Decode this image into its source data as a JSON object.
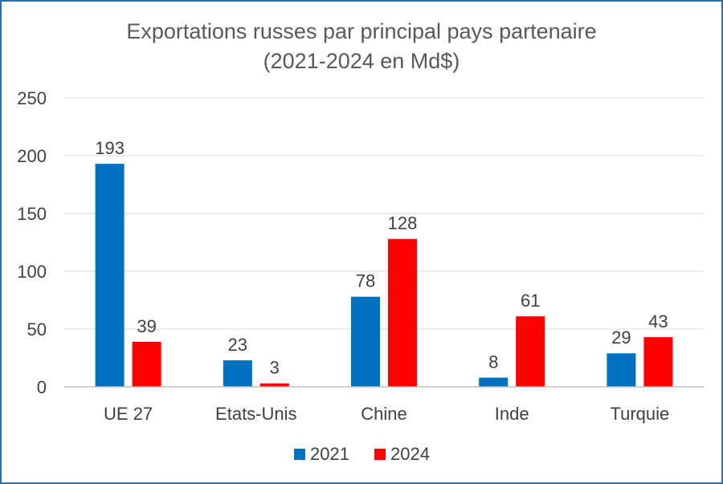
{
  "chart_data": {
    "type": "bar",
    "title": "Exportations russes par principal pays partenaire",
    "subtitle": "(2021-2024 en Md$)",
    "categories": [
      "UE 27",
      "Etats-Unis",
      "Chine",
      "Inde",
      "Turquie"
    ],
    "series": [
      {
        "name": "2021",
        "values": [
          193,
          23,
          78,
          8,
          29
        ],
        "color": "#0070c0"
      },
      {
        "name": "2024",
        "values": [
          39,
          3,
          128,
          61,
          43
        ],
        "color": "#ff0000"
      }
    ],
    "y_ticks": [
      "0",
      "50",
      "100",
      "150",
      "200",
      "250"
    ],
    "ylim": [
      0,
      250
    ],
    "xlabel": "",
    "ylabel": "",
    "grid": true,
    "legend_position": "bottom"
  }
}
